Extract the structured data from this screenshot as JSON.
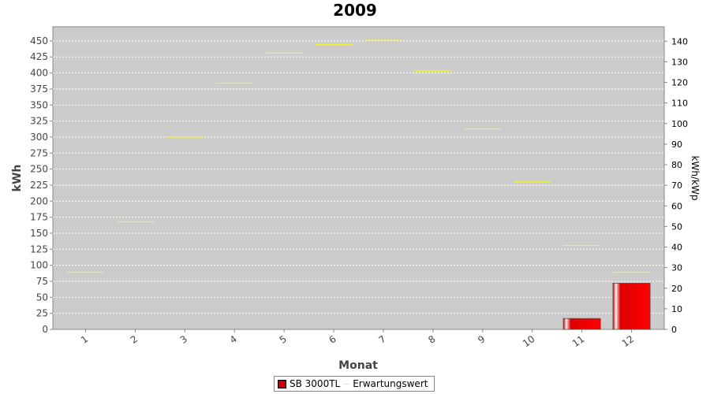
{
  "chart_data": {
    "type": "bar",
    "title": "2009",
    "xlabel": "Monat",
    "ylabel": "kWh",
    "y2label": "kWh/kWp",
    "categories": [
      "1",
      "2",
      "3",
      "4",
      "5",
      "6",
      "7",
      "8",
      "9",
      "10",
      "11",
      "12"
    ],
    "ylim": [
      0,
      472
    ],
    "y_ticks": [
      0,
      25,
      50,
      75,
      100,
      125,
      150,
      175,
      200,
      225,
      250,
      275,
      300,
      325,
      350,
      375,
      400,
      425,
      450
    ],
    "y2lim": [
      0,
      147
    ],
    "y2_ticks": [
      0,
      10,
      20,
      30,
      40,
      50,
      60,
      70,
      80,
      90,
      100,
      110,
      120,
      130,
      140
    ],
    "grid": true,
    "legend_position": "bottom",
    "series": [
      {
        "name": "SB 3000TL",
        "type": "bar",
        "color": "#cc0000",
        "values": [
          0,
          0,
          0,
          0,
          0,
          0,
          0,
          0,
          0,
          0,
          17,
          72
        ]
      },
      {
        "name": "Erwartungswert",
        "type": "step",
        "color": "#ffff00",
        "values": [
          89,
          168,
          300,
          384,
          431,
          444,
          451,
          403,
          313,
          230,
          131,
          89
        ]
      }
    ]
  }
}
